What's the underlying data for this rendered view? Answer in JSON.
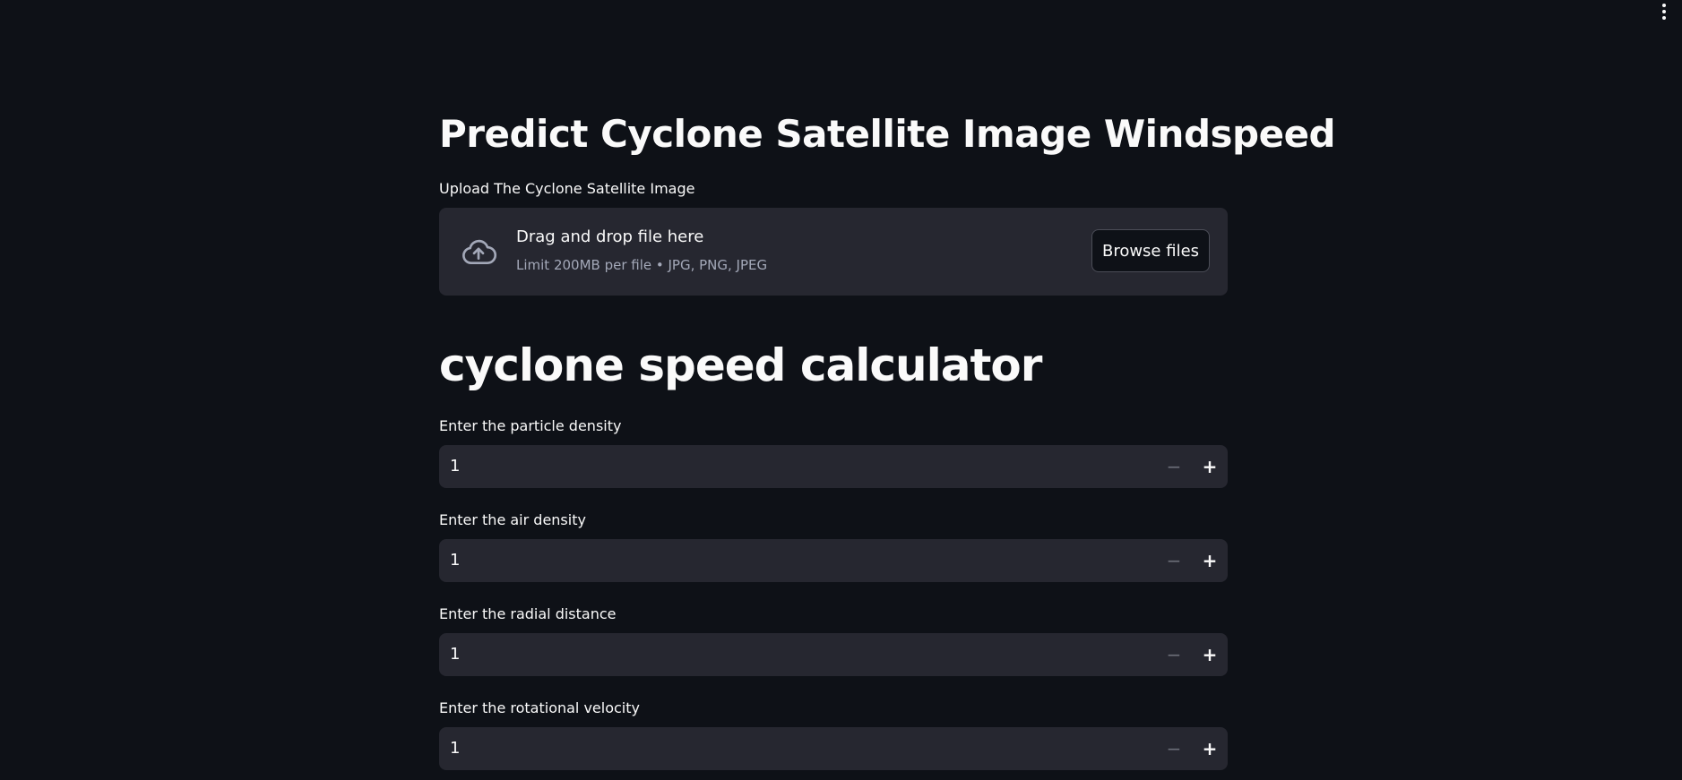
{
  "header": {
    "menu_icon": "vertical-ellipsis-icon"
  },
  "page": {
    "title": "Predict Cyclone Satellite Image Windspeed"
  },
  "uploader": {
    "label": "Upload The Cyclone Satellite Image",
    "icon": "cloud-upload-icon",
    "drop_text": "Drag and drop file here",
    "limit_text": "Limit 200MB per file • JPG, PNG, JPEG",
    "browse_label": "Browse files"
  },
  "calculator": {
    "title": "cyclone speed calculator",
    "inputs": [
      {
        "label": "Enter the particle density",
        "value": "1",
        "minus": "−",
        "plus": "+"
      },
      {
        "label": "Enter the air density",
        "value": "1",
        "minus": "−",
        "plus": "+"
      },
      {
        "label": "Enter the radial distance",
        "value": "1",
        "minus": "−",
        "plus": "+"
      },
      {
        "label": "Enter the rotational velocity",
        "value": "1",
        "minus": "−",
        "plus": "+"
      }
    ]
  },
  "colors": {
    "background": "#0e1117",
    "widget_bg": "#262730",
    "text": "#fafafa",
    "muted_text": "#a3a8b8"
  }
}
